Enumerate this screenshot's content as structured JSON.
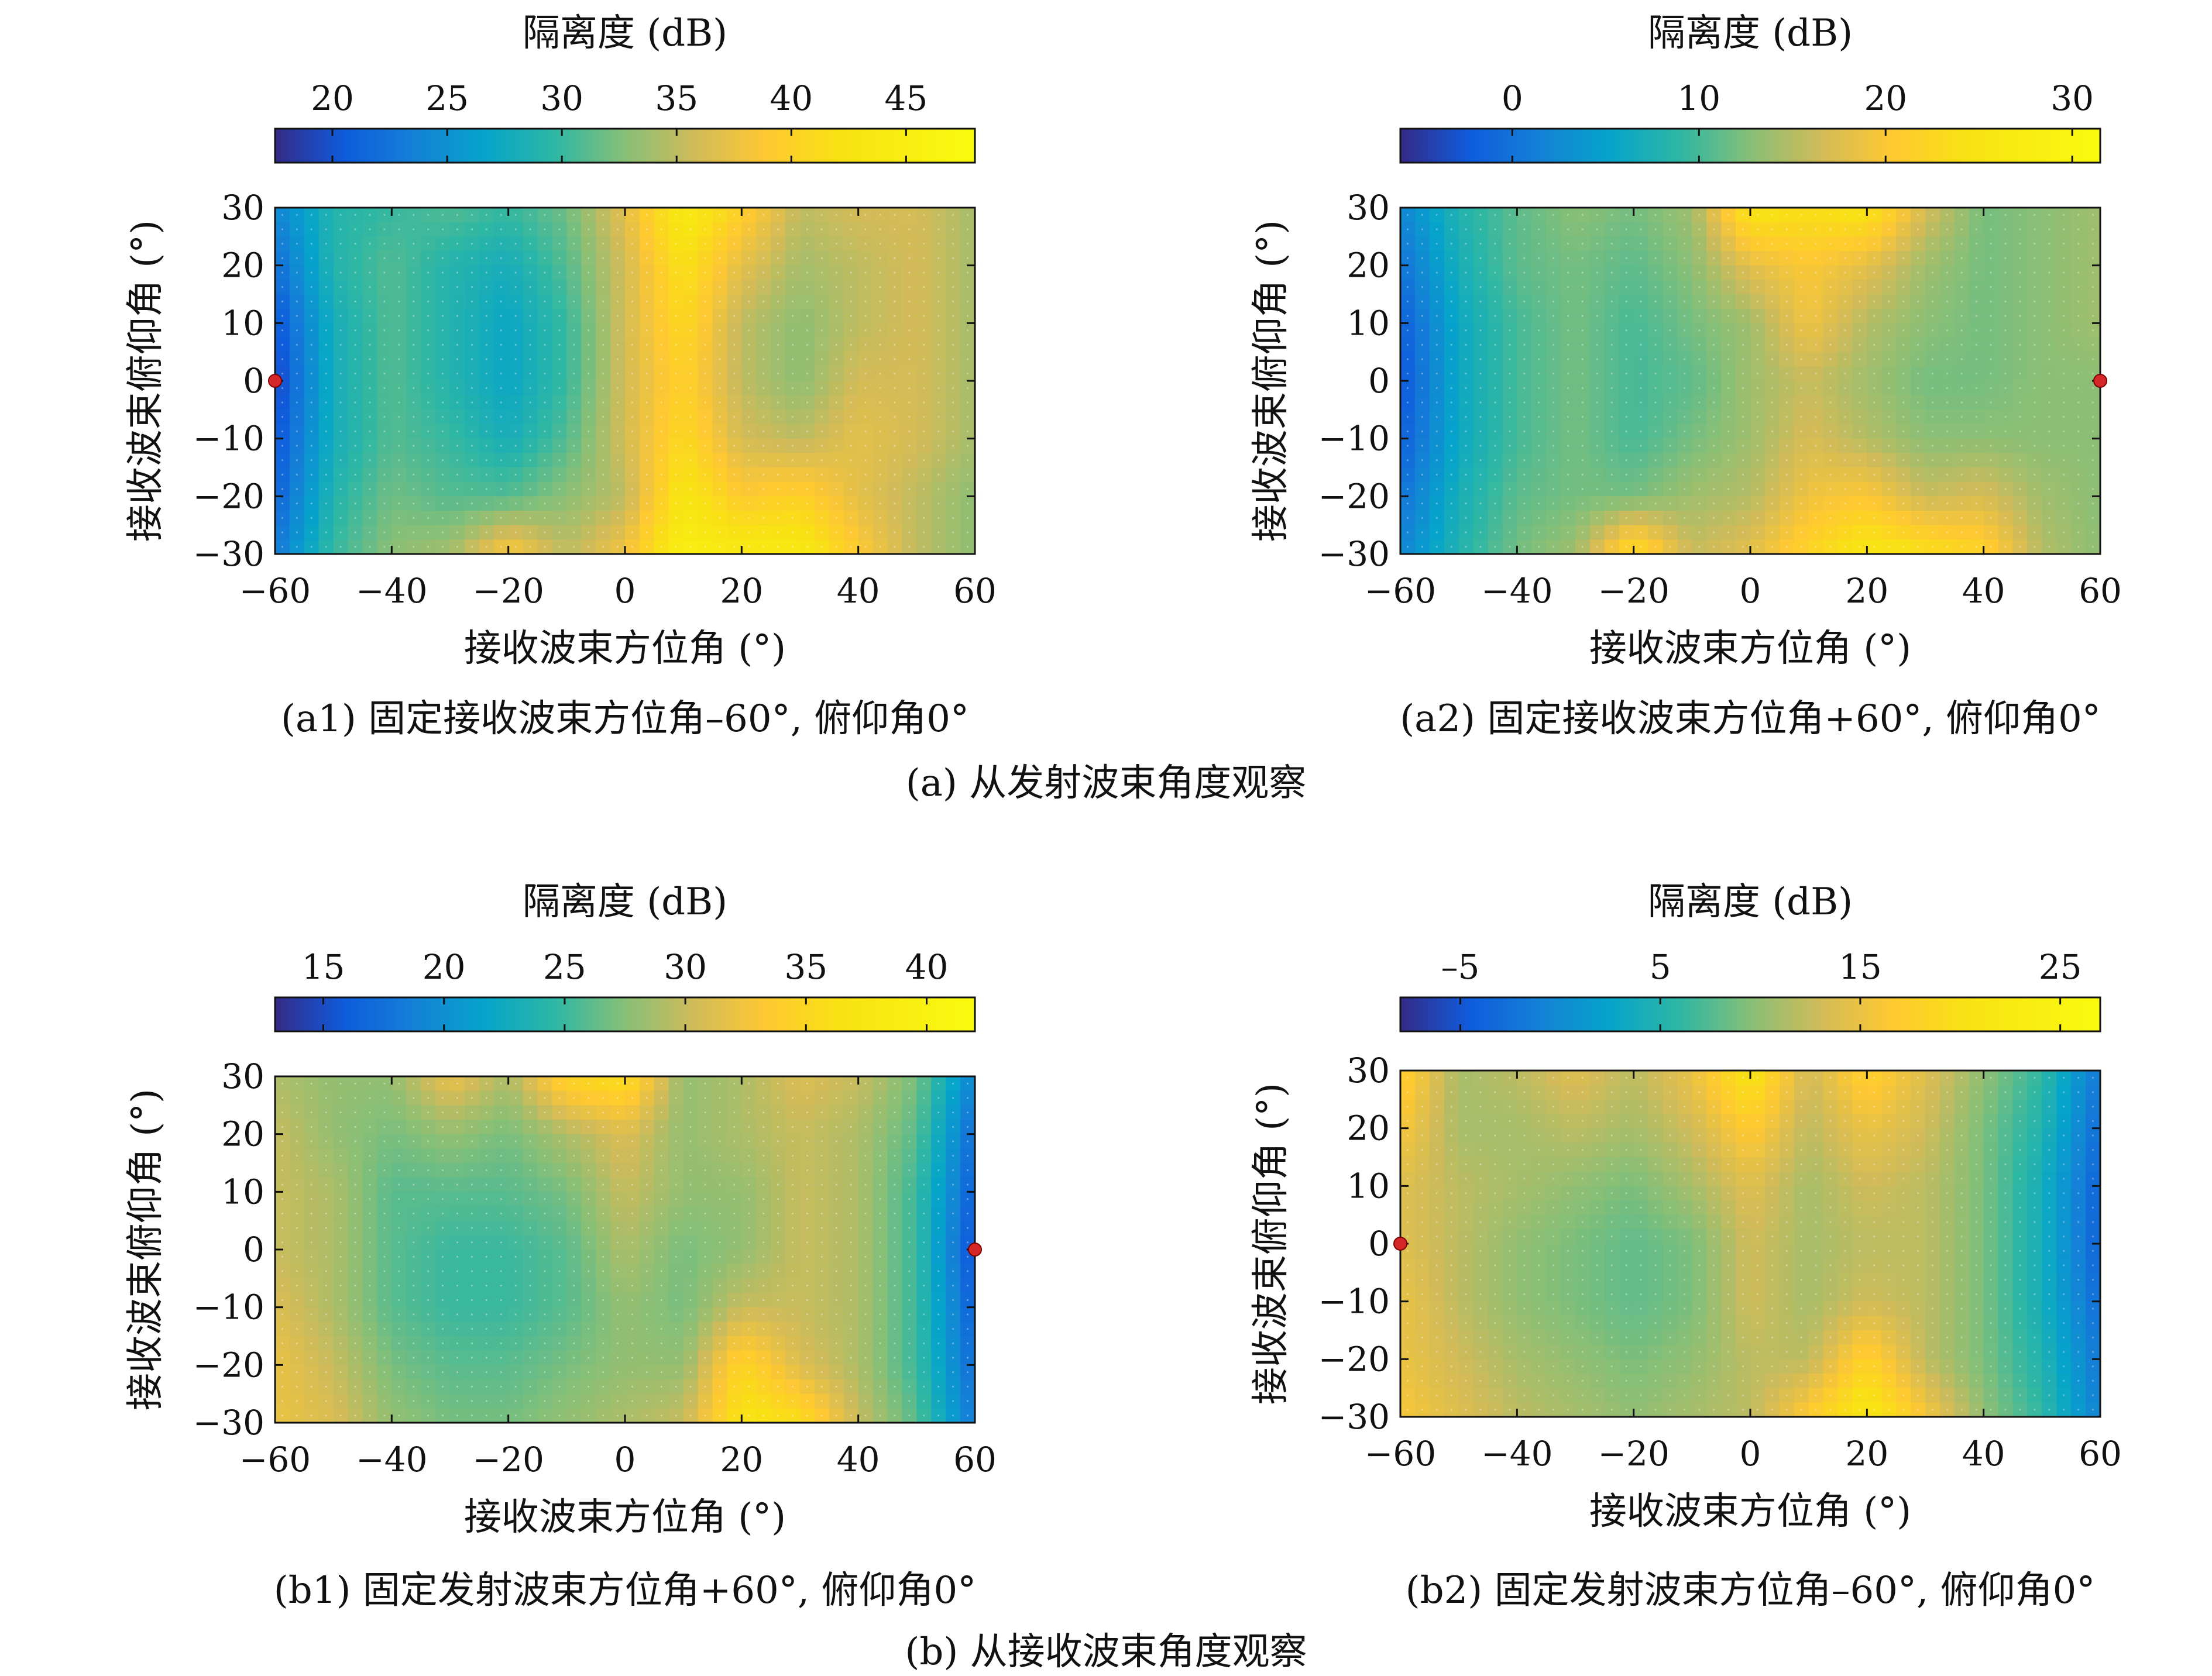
{
  "panels_group_captions": [
    "(a) 从发射波束角度观察",
    "(b) 从接收波束角度观察"
  ],
  "chart_data": [
    {
      "type": "heatmap",
      "caption": "(a1) 固定接收波束方位角–60°, 俯仰角0°",
      "colorbar_title": "隔离度 (dB)",
      "clim": [
        17.5,
        48
      ],
      "colorbar_ticks": [
        20,
        25,
        30,
        35,
        40,
        45
      ],
      "colorbar_tick_labels": [
        "20",
        "25",
        "30",
        "35",
        "40",
        "45"
      ],
      "xlabel": "接收波束方位角 (°)",
      "ylabel": "接收波束俯仰角 (°)",
      "xlim": [
        -60,
        60
      ],
      "ylim": [
        -30,
        30
      ],
      "x_ticks": [
        -60,
        -40,
        -20,
        0,
        20,
        40,
        60
      ],
      "x_tick_labels": [
        "−60",
        "−40",
        "−20",
        "0",
        "20",
        "40",
        "60"
      ],
      "y_ticks": [
        30,
        20,
        10,
        0,
        -10,
        -20,
        -30
      ],
      "y_tick_labels": [
        "30",
        "20",
        "10",
        "0",
        "−10",
        "−20",
        "−30"
      ],
      "grid_x": [
        -60,
        -50,
        -40,
        -30,
        -20,
        -10,
        0,
        10,
        20,
        30,
        40,
        50,
        60
      ],
      "grid_y": [
        30,
        20,
        10,
        0,
        -10,
        -20,
        -30
      ],
      "z": [
        [
          24,
          29,
          30,
          31,
          30,
          32,
          37,
          44,
          40,
          35,
          36,
          36,
          34
        ],
        [
          22,
          29,
          31,
          29,
          28,
          31,
          36,
          42,
          37,
          34,
          35,
          36,
          34
        ],
        [
          20,
          28,
          31,
          29,
          27,
          30,
          36,
          41,
          35,
          33,
          35,
          36,
          34
        ],
        [
          19,
          28,
          31,
          29,
          27,
          30,
          36,
          40,
          35,
          33,
          36,
          36,
          34
        ],
        [
          20,
          28,
          31,
          30,
          28,
          31,
          36,
          41,
          36,
          35,
          37,
          36,
          34
        ],
        [
          21,
          29,
          32,
          31,
          31,
          33,
          35,
          43,
          39,
          40,
          37,
          35,
          33
        ],
        [
          23,
          30,
          33,
          34,
          39,
          35,
          38,
          45,
          44,
          44,
          39,
          35,
          33
        ]
      ],
      "marker": {
        "x": -60,
        "y": 0,
        "color": "#d62728"
      }
    },
    {
      "type": "heatmap",
      "caption": "(a2) 固定接收波束方位角+60°, 俯仰角0°",
      "colorbar_title": "隔离度 (dB)",
      "clim": [
        -6,
        31.5
      ],
      "colorbar_ticks": [
        0,
        10,
        20,
        30
      ],
      "colorbar_tick_labels": [
        "0",
        "10",
        "20",
        "30"
      ],
      "xlabel": "接收波束方位角 (°)",
      "ylabel": "接收波束俯仰角 (°)",
      "xlim": [
        -60,
        60
      ],
      "ylim": [
        -30,
        30
      ],
      "x_ticks": [
        -60,
        -40,
        -20,
        0,
        20,
        40,
        60
      ],
      "x_tick_labels": [
        "−60",
        "−40",
        "−20",
        "0",
        "20",
        "40",
        "60"
      ],
      "y_ticks": [
        30,
        20,
        10,
        0,
        -10,
        -20,
        -30
      ],
      "y_tick_labels": [
        "30",
        "20",
        "10",
        "0",
        "−10",
        "−20",
        "−30"
      ],
      "grid_x": [
        -60,
        -50,
        -40,
        -30,
        -20,
        -10,
        0,
        10,
        20,
        30,
        40,
        50,
        60
      ],
      "grid_y": [
        30,
        20,
        10,
        0,
        -10,
        -20,
        -30
      ],
      "z": [
        [
          2,
          8,
          11,
          13,
          12,
          14,
          25,
          24,
          25,
          17,
          12,
          13,
          14
        ],
        [
          0,
          7,
          11,
          12,
          11,
          13,
          18,
          20,
          18,
          14,
          12,
          13,
          14
        ],
        [
          -2,
          6,
          10,
          12,
          10,
          12,
          14,
          19,
          15,
          13,
          12,
          13,
          14
        ],
        [
          -3,
          6,
          10,
          12,
          10,
          11,
          14,
          16,
          14,
          12,
          12,
          13,
          13
        ],
        [
          -2,
          6,
          10,
          12,
          10,
          12,
          14,
          17,
          15,
          13,
          13,
          13,
          13
        ],
        [
          0,
          7,
          11,
          12,
          12,
          14,
          15,
          19,
          20,
          16,
          17,
          14,
          13
        ],
        [
          2,
          8,
          12,
          14,
          24,
          16,
          18,
          22,
          26,
          24,
          22,
          15,
          13
        ]
      ],
      "marker": {
        "x": 60,
        "y": 0,
        "color": "#d62728"
      }
    },
    {
      "type": "heatmap",
      "caption": "(b1) 固定发射波束方位角+60°, 俯仰角0°",
      "colorbar_title": "隔离度 (dB)",
      "clim": [
        13,
        42
      ],
      "colorbar_ticks": [
        15,
        20,
        25,
        30,
        35,
        40
      ],
      "colorbar_tick_labels": [
        "15",
        "20",
        "25",
        "30",
        "35",
        "40"
      ],
      "xlabel": "接收波束方位角 (°)",
      "ylabel": "接收波束俯仰角 (°)",
      "xlim": [
        -60,
        60
      ],
      "ylim": [
        -30,
        30
      ],
      "x_ticks": [
        -60,
        -40,
        -20,
        0,
        20,
        40,
        60
      ],
      "x_tick_labels": [
        "−60",
        "−40",
        "−20",
        "0",
        "20",
        "40",
        "60"
      ],
      "y_ticks": [
        30,
        20,
        10,
        0,
        -10,
        -20,
        -30
      ],
      "y_tick_labels": [
        "30",
        "20",
        "10",
        "0",
        "−10",
        "−20",
        "−30"
      ],
      "grid_x": [
        -60,
        -50,
        -40,
        -30,
        -20,
        -10,
        0,
        10,
        20,
        30,
        40,
        50,
        60
      ],
      "grid_y": [
        30,
        20,
        10,
        0,
        -10,
        -20,
        -30
      ],
      "z": [
        [
          29,
          28,
          28,
          32,
          29,
          35,
          36,
          28,
          29,
          31,
          30,
          27,
          19
        ],
        [
          30,
          28,
          27,
          28,
          27,
          29,
          31,
          28,
          29,
          30,
          29,
          26,
          17
        ],
        [
          30,
          29,
          26,
          26,
          26,
          27,
          30,
          28,
          28,
          30,
          29,
          25,
          16
        ],
        [
          30,
          29,
          26,
          25,
          25,
          26,
          29,
          27,
          28,
          30,
          29,
          25,
          15
        ],
        [
          31,
          29,
          26,
          25,
          25,
          26,
          28,
          27,
          30,
          30,
          29,
          25,
          16
        ],
        [
          32,
          30,
          27,
          26,
          26,
          27,
          28,
          28,
          35,
          31,
          29,
          25,
          17
        ],
        [
          32,
          31,
          28,
          27,
          27,
          28,
          29,
          30,
          37,
          36,
          30,
          26,
          18
        ]
      ],
      "marker": {
        "x": 60,
        "y": 0,
        "color": "#d62728"
      }
    },
    {
      "type": "heatmap",
      "caption": "(b2) 固定发射波束方位角–60°, 俯仰角0°",
      "colorbar_title": "隔离度 (dB)",
      "clim": [
        -8,
        27
      ],
      "colorbar_ticks": [
        -5,
        5,
        15,
        25
      ],
      "colorbar_tick_labels": [
        "–5",
        "5",
        "15",
        "25"
      ],
      "xlabel": "接收波束方位角 (°)",
      "ylabel": "接收波束俯仰角 (°)",
      "xlim": [
        -60,
        60
      ],
      "ylim": [
        -30,
        30
      ],
      "x_ticks": [
        -60,
        -40,
        -20,
        0,
        20,
        40,
        60
      ],
      "x_tick_labels": [
        "−60",
        "−40",
        "−20",
        "0",
        "20",
        "40",
        "60"
      ],
      "y_ticks": [
        30,
        20,
        10,
        0,
        -10,
        -20,
        -30
      ],
      "y_tick_labels": [
        "30",
        "20",
        "10",
        "0",
        "−10",
        "−20",
        "−30"
      ],
      "grid_x": [
        -60,
        -50,
        -40,
        -30,
        -20,
        -10,
        0,
        10,
        20,
        30,
        40,
        50,
        60
      ],
      "grid_y": [
        30,
        20,
        10,
        0,
        -10,
        -20,
        -30
      ],
      "z": [
        [
          18,
          11,
          12,
          14,
          12,
          15,
          21,
          13,
          18,
          14,
          10,
          6,
          -2
        ],
        [
          16,
          11,
          11,
          12,
          11,
          13,
          17,
          12,
          15,
          13,
          9,
          5,
          -3
        ],
        [
          14,
          12,
          11,
          10,
          9,
          11,
          14,
          11,
          13,
          12,
          9,
          4,
          -4
        ],
        [
          14,
          12,
          10,
          9,
          8,
          9,
          13,
          11,
          12,
          12,
          9,
          4,
          -4
        ],
        [
          15,
          12,
          10,
          9,
          8,
          9,
          13,
          11,
          13,
          12,
          9,
          4,
          -3
        ],
        [
          15,
          13,
          11,
          10,
          9,
          10,
          12,
          12,
          18,
          12,
          9,
          5,
          -2
        ],
        [
          16,
          14,
          12,
          11,
          10,
          11,
          12,
          17,
          22,
          16,
          10,
          6,
          -1
        ]
      ],
      "marker": {
        "x": -60,
        "y": 0,
        "color": "#d62728"
      }
    }
  ]
}
